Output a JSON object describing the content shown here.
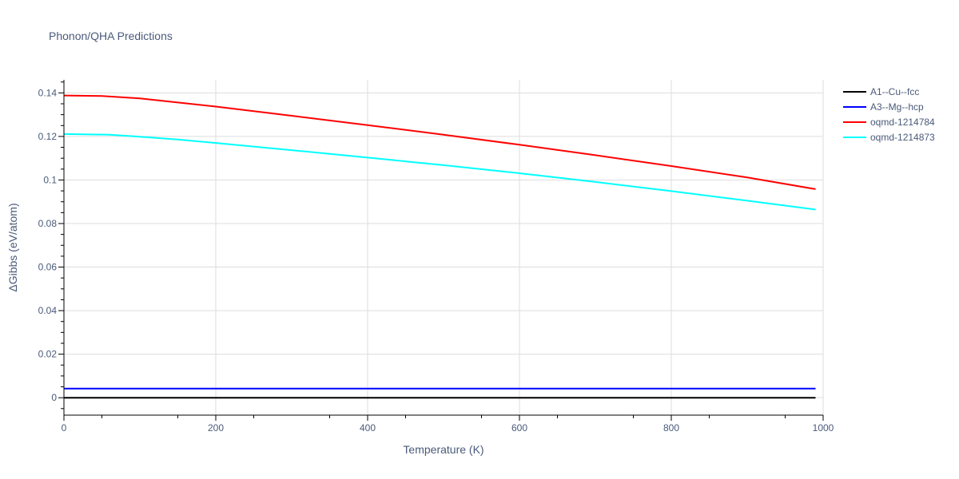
{
  "chart_data": {
    "type": "line",
    "title": "Phonon/QHA Predictions",
    "xlabel": "Temperature (K)",
    "ylabel": "ΔGibbs (eV/atom)",
    "xlim": [
      0,
      1000
    ],
    "ylim": [
      -0.008,
      0.146
    ],
    "x_ticks": [
      0,
      200,
      400,
      600,
      800,
      1000
    ],
    "x_tick_labels": [
      "0",
      "200",
      "400",
      "600",
      "800",
      "1000"
    ],
    "y_ticks": [
      0,
      0.02,
      0.04,
      0.06,
      0.08,
      0.1,
      0.12,
      0.14
    ],
    "y_tick_labels": [
      "0",
      "0.02",
      "0.04",
      "0.06",
      "0.08",
      "0.1",
      "0.12",
      "0.14"
    ],
    "grid": true,
    "legend_position": "top-right",
    "series": [
      {
        "name": "A1--Cu--fcc",
        "color": "#000000",
        "x": [
          0,
          990
        ],
        "values": [
          0,
          0
        ]
      },
      {
        "name": "A3--Mg--hcp",
        "color": "#0000ff",
        "x": [
          0,
          990
        ],
        "values": [
          0.0042,
          0.0042
        ]
      },
      {
        "name": "oqmd-1214784",
        "color": "#ff0000",
        "x": [
          0,
          50,
          100,
          150,
          200,
          300,
          400,
          500,
          600,
          700,
          800,
          900,
          990
        ],
        "values": [
          0.1388,
          0.1386,
          0.1375,
          0.1356,
          0.1337,
          0.1295,
          0.1252,
          0.1208,
          0.1162,
          0.1114,
          0.1064,
          0.1012,
          0.0958
        ]
      },
      {
        "name": "oqmd-1214873",
        "color": "#00ffff",
        "x": [
          0,
          60,
          100,
          150,
          200,
          300,
          400,
          500,
          600,
          700,
          800,
          900,
          990
        ],
        "values": [
          0.1211,
          0.1208,
          0.1199,
          0.1186,
          0.117,
          0.1137,
          0.1103,
          0.1068,
          0.1031,
          0.0991,
          0.0949,
          0.0905,
          0.0864
        ]
      }
    ]
  }
}
